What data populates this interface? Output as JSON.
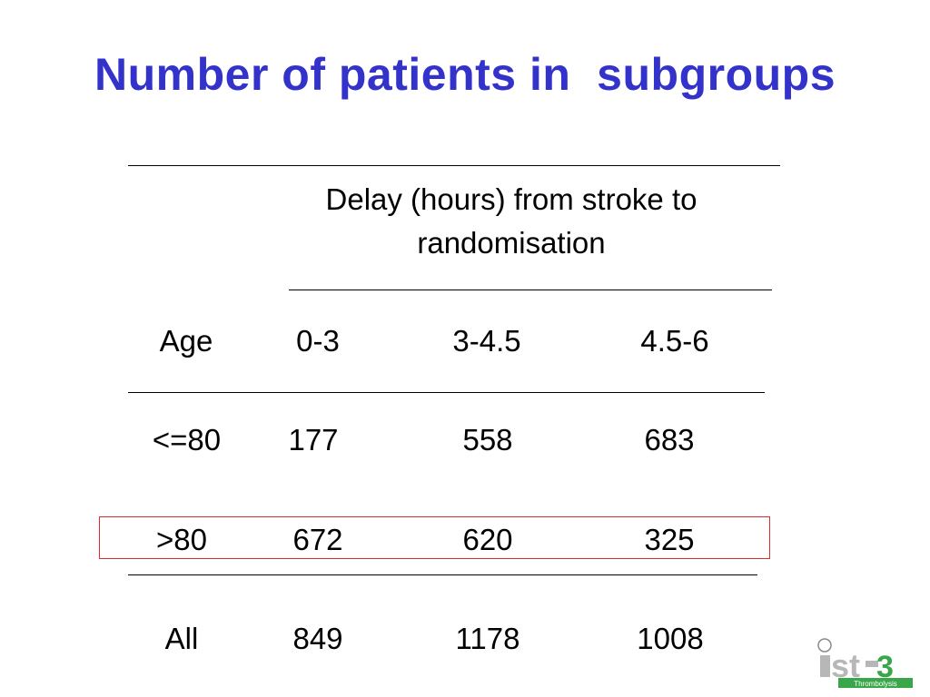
{
  "title": "Number of patients in  subgroups",
  "colors": {
    "title": "#3333cc",
    "highlight_border": "#e0282e",
    "logo_gray": "#b7b7b7",
    "logo_green": "#3aa64a"
  },
  "table": {
    "header": {
      "line1": "Delay (hours) from stroke to",
      "line2": "randomisation"
    },
    "columns": [
      "Age",
      "0-3",
      "3-4.5",
      "4.5-6"
    ],
    "rows": [
      [
        "<=80",
        "177",
        "558",
        "683"
      ],
      [
        ">80",
        "672",
        "620",
        "325"
      ],
      [
        "All",
        "849",
        "1178",
        "1008"
      ]
    ]
  },
  "logo": {
    "text": "ist-3",
    "tagline": "Thrombolysis"
  }
}
